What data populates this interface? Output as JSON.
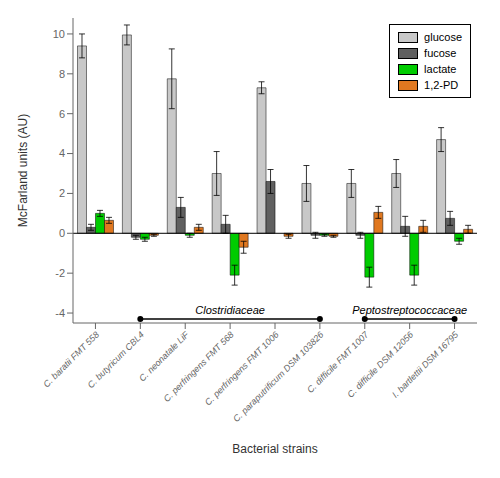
{
  "chart_data": {
    "type": "bar",
    "xlabel": "Bacterial strains",
    "ylabel": "McFarland units (AU)",
    "categories": [
      "C. baratii FMT 558",
      "C. butyricum CBL4",
      "C. neonatale LiF",
      "C. perfringens FMT 568",
      "C. perfringens FMT 1006",
      "C. paraputrificum DSM 103826",
      "C. difficile FMT 1007",
      "C. difficile DSM 12056",
      "I. bartlettii DSM 16795"
    ],
    "series": [
      {
        "name": "glucose",
        "color": "#c8c8c8",
        "values": [
          9.4,
          9.95,
          7.75,
          3.0,
          7.3,
          2.5,
          2.5,
          3.0,
          4.7
        ],
        "errors": [
          0.6,
          0.5,
          1.5,
          1.1,
          0.3,
          0.9,
          0.7,
          0.7,
          0.6
        ]
      },
      {
        "name": "fucose",
        "color": "#606060",
        "values": [
          0.3,
          -0.2,
          1.3,
          0.45,
          2.6,
          -0.1,
          -0.1,
          0.35,
          0.75
        ],
        "errors": [
          0.15,
          0.1,
          0.5,
          0.45,
          0.6,
          0.15,
          0.15,
          0.5,
          0.35
        ]
      },
      {
        "name": "lactate",
        "color": "#00cc00",
        "values": [
          1.0,
          -0.3,
          -0.1,
          -2.1,
          0.0,
          -0.1,
          -2.2,
          -2.1,
          -0.4
        ],
        "errors": [
          0.15,
          0.1,
          0.1,
          0.5,
          0.05,
          0.05,
          0.5,
          0.5,
          0.15
        ]
      },
      {
        "name": "1,2-PD",
        "color": "#e07820",
        "values": [
          0.65,
          -0.1,
          0.3,
          -0.7,
          -0.15,
          -0.15,
          1.05,
          0.35,
          0.2
        ],
        "errors": [
          0.15,
          0.05,
          0.15,
          0.3,
          0.1,
          0.05,
          0.3,
          0.3,
          0.2
        ]
      }
    ],
    "ylim": [
      -4.5,
      10.8
    ],
    "yticks": [
      -4,
      -2,
      0,
      2,
      4,
      6,
      8,
      10
    ],
    "grid": false,
    "legend": "upper right",
    "annotations": [
      {
        "text": "Clostridiaceae",
        "start": "C. butyricum CBL4",
        "end": "C. paraputrificum DSM 103826",
        "y": -4.3,
        "label_y": -4.05
      },
      {
        "text": "Peptostreptococcaceae",
        "start": "C. difficile FMT 1007",
        "end": "I. bartlettii DSM 16795",
        "y": -4.3,
        "label_y": -4.05
      }
    ]
  }
}
